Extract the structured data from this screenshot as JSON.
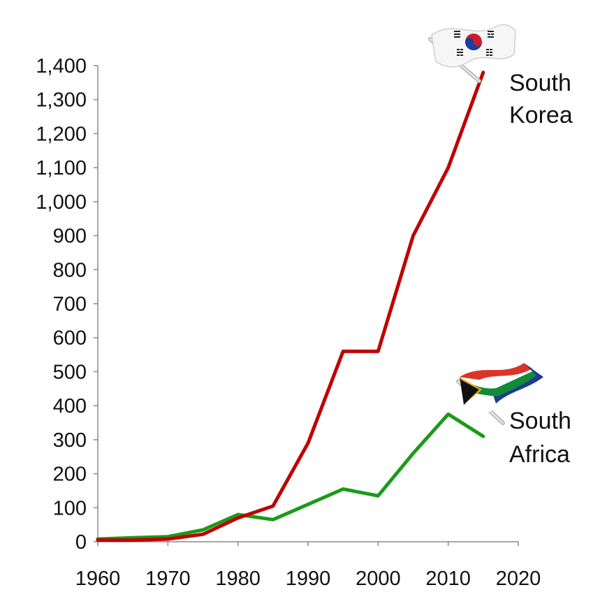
{
  "chart_data": {
    "type": "line",
    "title": "",
    "xlabel": "",
    "ylabel": "",
    "xlim": [
      1960,
      2020
    ],
    "ylim": [
      0,
      1400
    ],
    "xticks": [
      "1960",
      "1970",
      "1980",
      "1990",
      "2000",
      "2010",
      "2020"
    ],
    "yticks": [
      "0",
      "100",
      "200",
      "300",
      "400",
      "500",
      "600",
      "700",
      "800",
      "900",
      "1,000",
      "1,100",
      "1,200",
      "1,300",
      "1,400"
    ],
    "grid": false,
    "legend": "inline labels at line ends",
    "series": [
      {
        "name": "South Korea",
        "label_lines": [
          "South",
          "Korea"
        ],
        "color": "#c00000",
        "flag_icon": "south-korea-flag-icon",
        "x": [
          1960,
          1965,
          1970,
          1975,
          1980,
          1985,
          1990,
          1995,
          2000,
          2005,
          2010,
          2015
        ],
        "y": [
          5,
          5,
          8,
          22,
          70,
          105,
          290,
          560,
          560,
          900,
          1100,
          1380
        ]
      },
      {
        "name": "South Africa",
        "label_lines": [
          "South",
          "Africa"
        ],
        "color": "#1a9a1a",
        "flag_icon": "south-africa-flag-icon",
        "x": [
          1960,
          1965,
          1970,
          1975,
          1980,
          1985,
          1990,
          1995,
          2000,
          2005,
          2010,
          2015
        ],
        "y": [
          8,
          12,
          15,
          35,
          80,
          65,
          110,
          155,
          135,
          260,
          375,
          310
        ]
      }
    ]
  }
}
